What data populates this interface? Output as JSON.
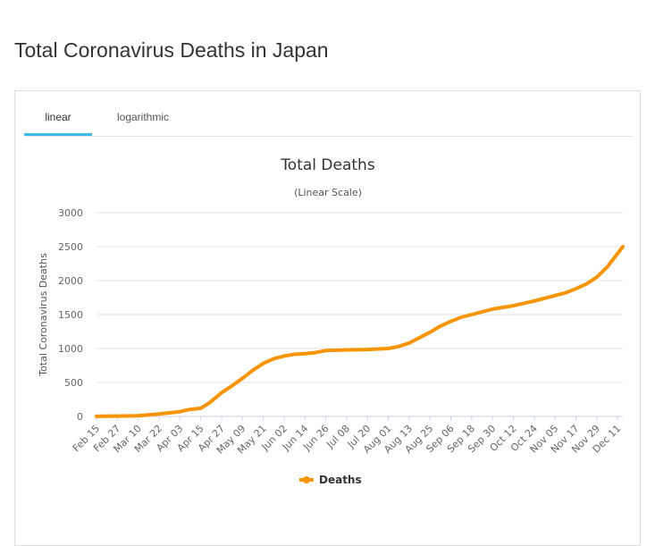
{
  "page": {
    "title": "Total Coronavirus Deaths in Japan"
  },
  "tabs": [
    {
      "label": "linear",
      "active": true
    },
    {
      "label": "logarithmic",
      "active": false
    }
  ],
  "colors": {
    "series": "#f79400",
    "tab_active": "#3bbcec",
    "grid": "#e6e6e6",
    "text": "#333333",
    "axis_text": "#666666"
  },
  "chart_data": {
    "type": "line",
    "title": "Total Deaths",
    "subtitle": "(Linear Scale)",
    "ylabel": "Total Coronavirus Deaths",
    "xlabel": "",
    "ylim": [
      0,
      3000
    ],
    "yticks": [
      0,
      500,
      1000,
      1500,
      2000,
      2500,
      3000
    ],
    "grid": true,
    "legend_position": "bottom-center",
    "x_tick_labels": [
      "Feb 15",
      "Feb 27",
      "Mar 10",
      "Mar 22",
      "Apr 03",
      "Apr 15",
      "Apr 27",
      "May 09",
      "May 21",
      "Jun 02",
      "Jun 14",
      "Jun 26",
      "Jul 08",
      "Jul 20",
      "Aug 01",
      "Aug 13",
      "Aug 25",
      "Sep 06",
      "Sep 18",
      "Sep 30",
      "Oct 12",
      "Oct 24",
      "Nov 05",
      "Nov 17",
      "Nov 29",
      "Dec 11"
    ],
    "x": [
      "Feb 15",
      "Feb 27",
      "Mar 10",
      "Mar 22",
      "Apr 03",
      "Apr 08",
      "Apr 15",
      "Apr 20",
      "Apr 27",
      "May 03",
      "May 09",
      "May 15",
      "May 21",
      "May 27",
      "Jun 02",
      "Jun 08",
      "Jun 14",
      "Jun 20",
      "Jun 26",
      "Jul 08",
      "Jul 20",
      "Aug 01",
      "Aug 07",
      "Aug 13",
      "Aug 19",
      "Aug 25",
      "Aug 31",
      "Sep 06",
      "Sep 12",
      "Sep 18",
      "Sep 24",
      "Sep 30",
      "Oct 12",
      "Oct 24",
      "Nov 05",
      "Nov 11",
      "Nov 17",
      "Nov 23",
      "Nov 29",
      "Dec 05",
      "Dec 11",
      "Dec 14"
    ],
    "series": [
      {
        "name": "Deaths",
        "values": [
          1,
          5,
          10,
          35,
          70,
          100,
          120,
          200,
          350,
          450,
          560,
          680,
          780,
          850,
          890,
          915,
          925,
          940,
          970,
          980,
          985,
          1000,
          1030,
          1080,
          1160,
          1240,
          1330,
          1400,
          1460,
          1500,
          1540,
          1580,
          1630,
          1700,
          1780,
          1820,
          1880,
          1950,
          2050,
          2200,
          2400,
          2500
        ]
      }
    ]
  }
}
